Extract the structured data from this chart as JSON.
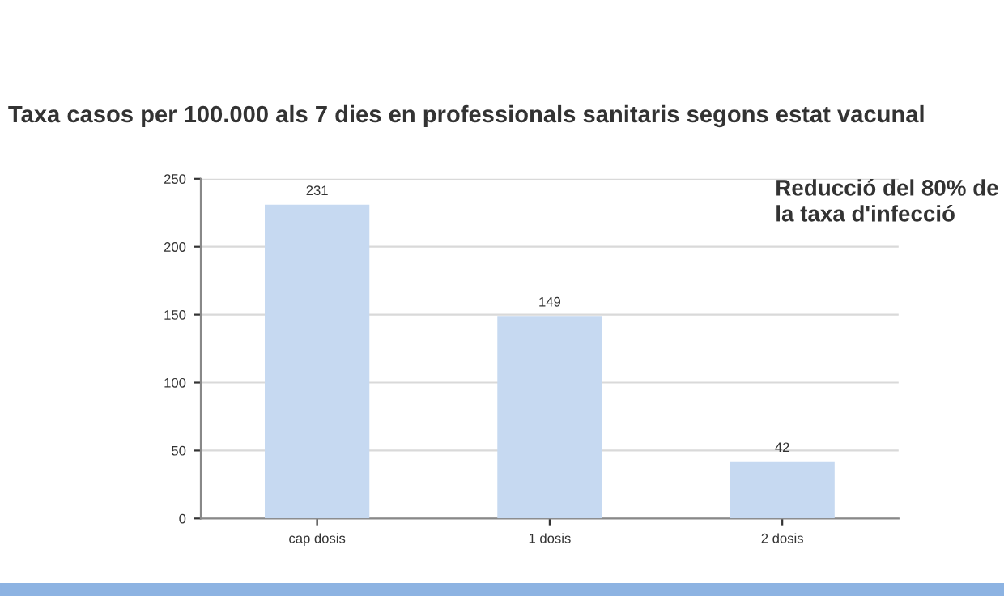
{
  "chart_data": {
    "type": "bar",
    "title": "Taxa casos per 100.000 als 7 dies en professionals sanitaris segons estat vacunal",
    "categories": [
      "cap dosis",
      "1 dosis",
      "2 dosis"
    ],
    "values": [
      231,
      149,
      42
    ],
    "color": "#c6d9f1",
    "ylim": [
      0,
      250
    ],
    "yticks": [
      0,
      50,
      100,
      150,
      200,
      250
    ],
    "grid": "y",
    "data_labels": true,
    "annotations": [
      "Reducció del 80% de\nla taxa d'infecció"
    ]
  }
}
